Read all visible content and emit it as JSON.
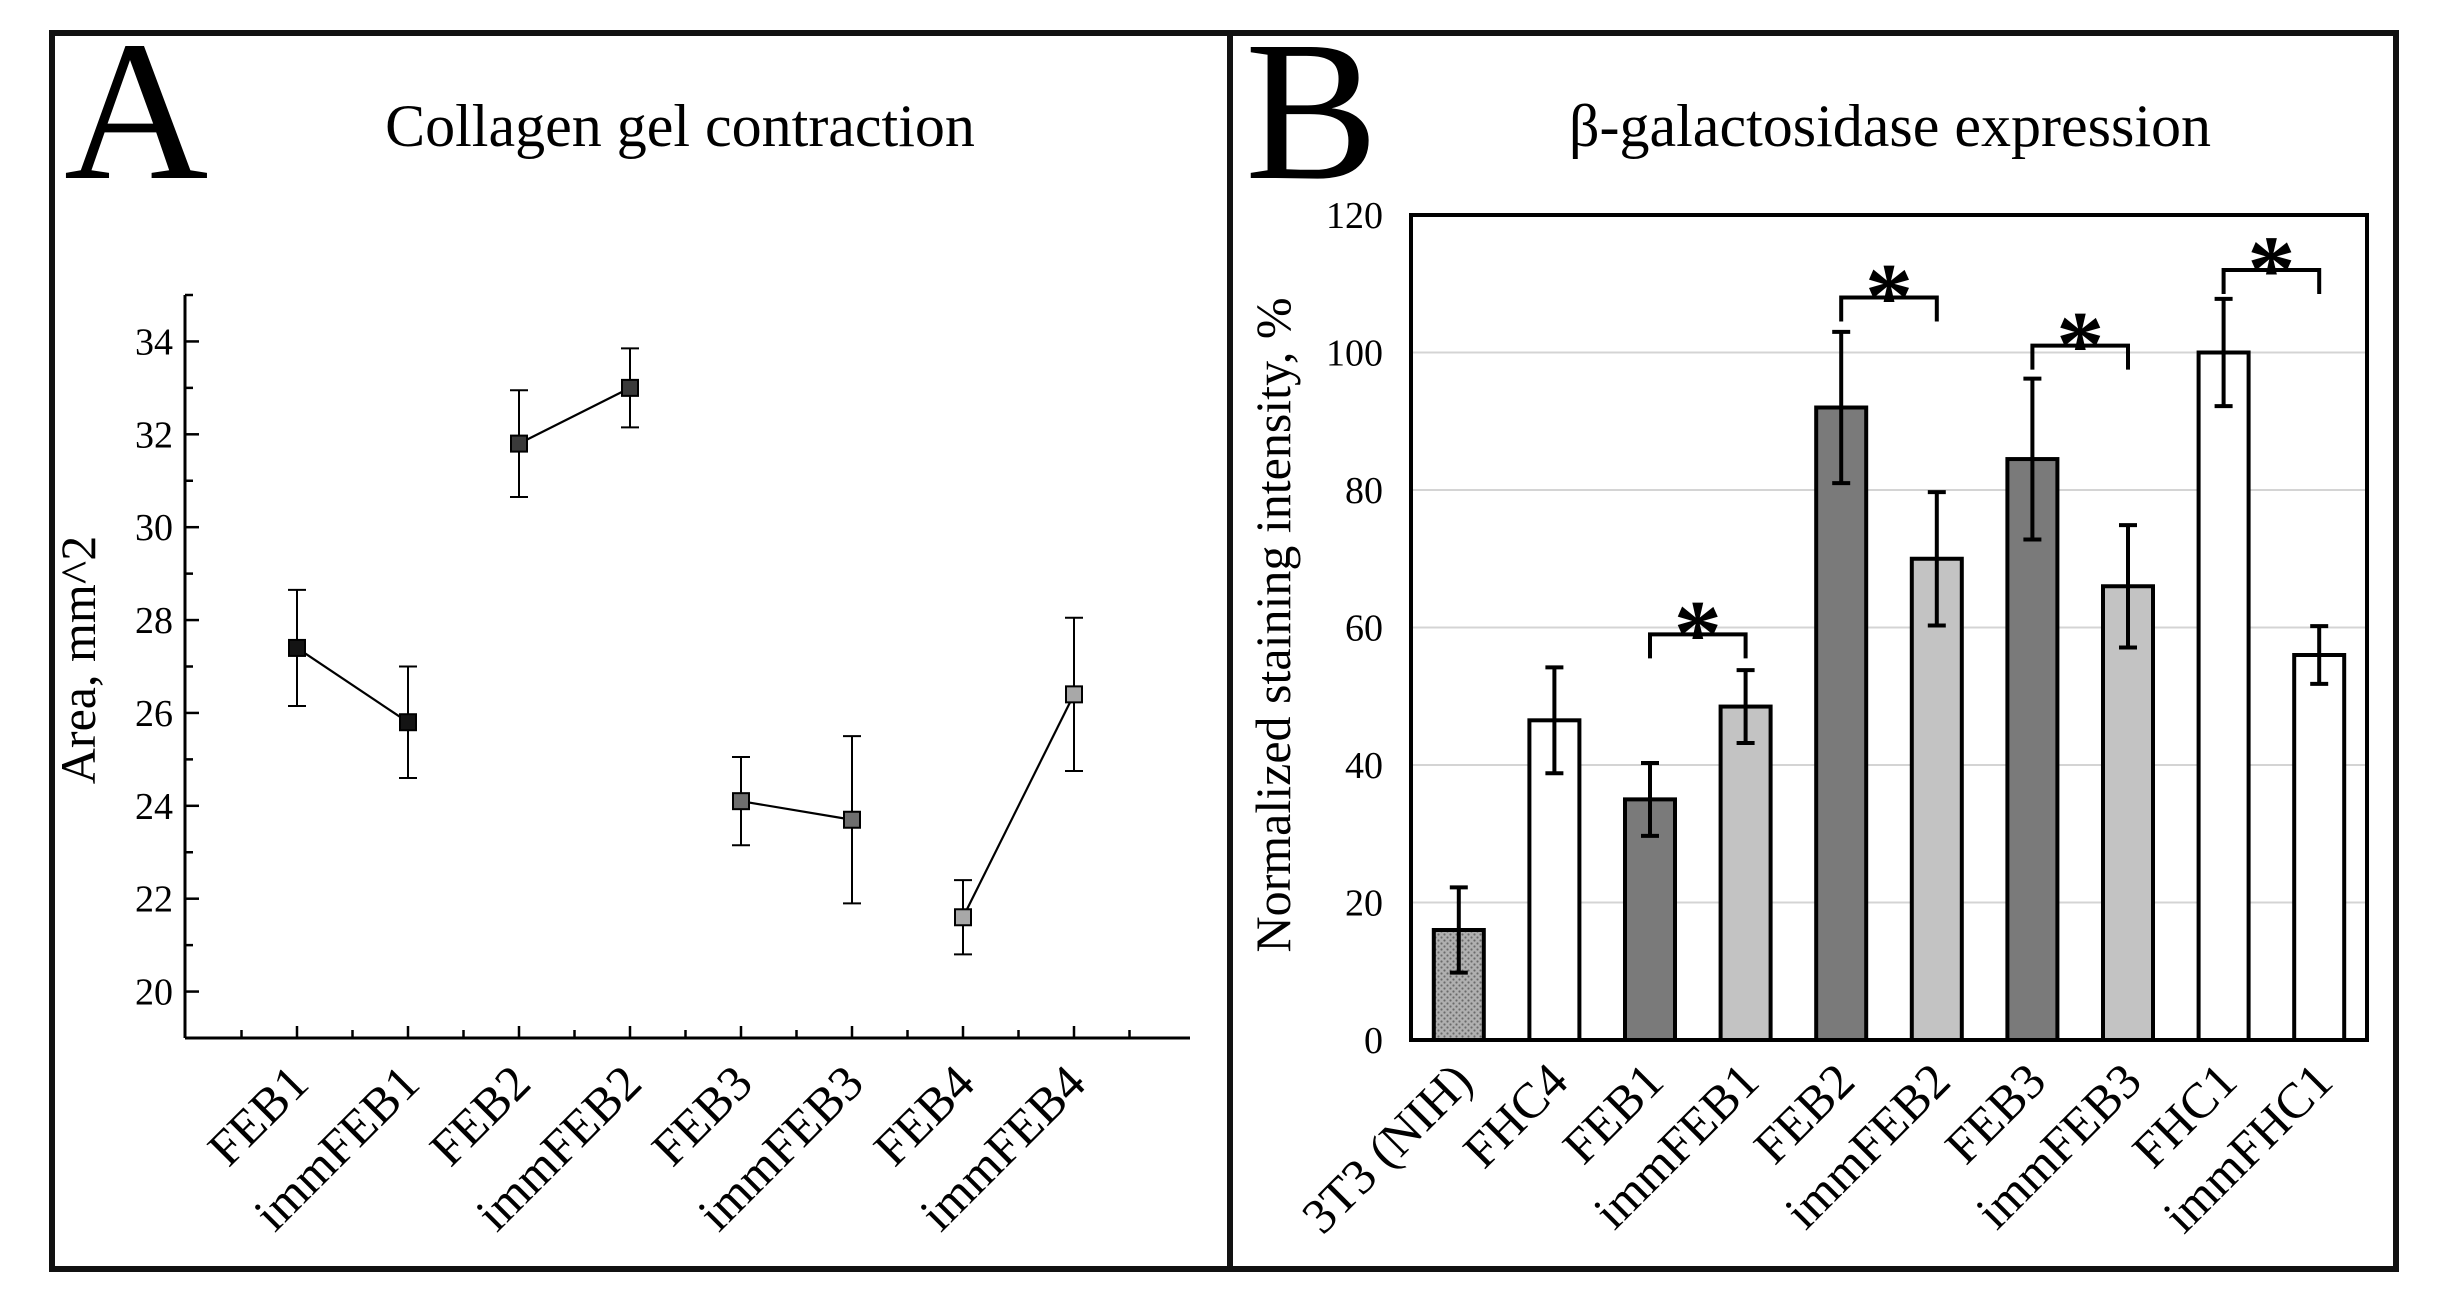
{
  "colors": {
    "frame": "#111111",
    "bar_dark": "#7a7a7a",
    "bar_light": "#c3c3c3",
    "bar_white": "#ffffff",
    "bar_hatched": "#b8b8b8",
    "gridline": "#d4d4d4",
    "marker_FEB1": "#141414",
    "marker_FEB2": "#3a3a3a",
    "marker_FEB3": "#6e6e6e",
    "marker_FEB4": "#a8a8a8"
  },
  "chart_data": [
    {
      "panel_label": "A",
      "type": "line",
      "title": "Collagen gel contraction",
      "xlabel": "",
      "ylabel": "Area, mm^2",
      "ylim": [
        19,
        35
      ],
      "yticks": [
        "20",
        "22",
        "24",
        "26",
        "28",
        "30",
        "32",
        "34"
      ],
      "grid": false,
      "categories": [
        "FEB1",
        "immFEB1",
        "FEB2",
        "immFEB2",
        "FEB3",
        "immFEB3",
        "FEB4",
        "immFEB4"
      ],
      "series": [
        {
          "name": "FEB1",
          "x": [
            "FEB1",
            "immFEB1"
          ],
          "values": [
            27.4,
            25.8
          ],
          "errors": [
            1.25,
            1.2
          ],
          "marker_color_key": "marker_FEB1"
        },
        {
          "name": "FEB2",
          "x": [
            "FEB2",
            "immFEB2"
          ],
          "values": [
            31.8,
            33.0
          ],
          "errors": [
            1.15,
            0.85
          ],
          "marker_color_key": "marker_FEB2"
        },
        {
          "name": "FEB3",
          "x": [
            "FEB3",
            "immFEB3"
          ],
          "values": [
            24.1,
            23.7
          ],
          "errors": [
            0.95,
            1.8
          ],
          "marker_color_key": "marker_FEB3"
        },
        {
          "name": "FEB4",
          "x": [
            "FEB4",
            "immFEB4"
          ],
          "values": [
            21.6,
            26.4
          ],
          "errors": [
            0.8,
            1.65
          ],
          "marker_color_key": "marker_FEB4"
        }
      ]
    },
    {
      "panel_label": "B",
      "type": "bar",
      "title": "β-galactosidase expression",
      "xlabel": "",
      "ylabel": "Normalized staining intensity, %",
      "ylim": [
        0,
        120
      ],
      "yticks": [
        "0",
        "20",
        "40",
        "60",
        "80",
        "100",
        "120"
      ],
      "grid": true,
      "categories": [
        "3T3 (NIH)",
        "FHC4",
        "FEB1",
        "immFEB1",
        "FEB2",
        "immFEB2",
        "FEB3",
        "immFEB3",
        "FHC1",
        "immFHC1"
      ],
      "values": [
        16,
        46.5,
        35,
        48.5,
        92,
        70,
        84.5,
        66,
        100,
        56
      ],
      "errors": [
        6.2,
        7.7,
        5.3,
        5.3,
        11,
        9.7,
        11.7,
        8.9,
        7.8,
        4.2
      ],
      "fills": [
        "bar_hatched",
        "bar_white",
        "bar_dark",
        "bar_light",
        "bar_dark",
        "bar_light",
        "bar_dark",
        "bar_light",
        "bar_white",
        "bar_white"
      ],
      "significance": [
        {
          "pair": [
            "FEB1",
            "immFEB1"
          ],
          "y": 59,
          "label": "*"
        },
        {
          "pair": [
            "FEB2",
            "immFEB2"
          ],
          "y": 108,
          "label": "*"
        },
        {
          "pair": [
            "FEB3",
            "immFEB3"
          ],
          "y": 101,
          "label": "*"
        },
        {
          "pair": [
            "FHC1",
            "immFHC1"
          ],
          "y": 112,
          "label": "*"
        }
      ]
    }
  ]
}
